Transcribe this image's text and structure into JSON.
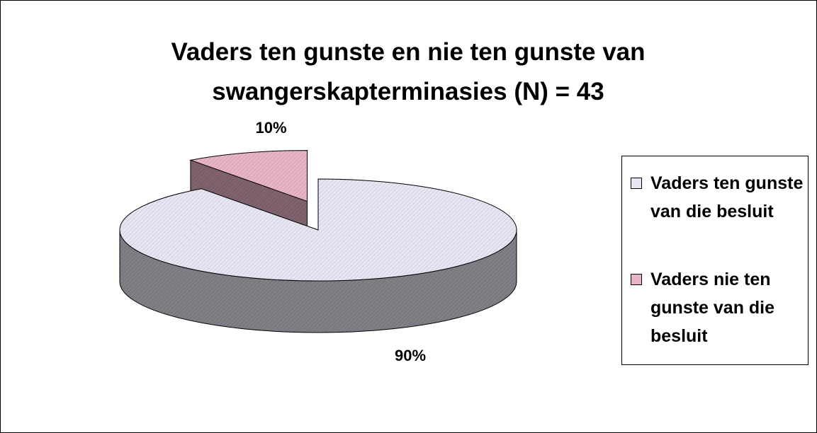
{
  "chart_data": {
    "type": "pie",
    "title": "Vaders ten gunste en nie ten gunste van swangerskapterminasies (N) = 43",
    "categories": [
      "Vaders ten gunste van die besluit",
      "Vaders nie ten gunste van die besluit"
    ],
    "values": [
      90,
      10
    ],
    "value_labels": [
      "90%",
      "10%"
    ],
    "colors": [
      "#e6e6f4",
      "#e8b4c8"
    ],
    "legend": "right"
  }
}
